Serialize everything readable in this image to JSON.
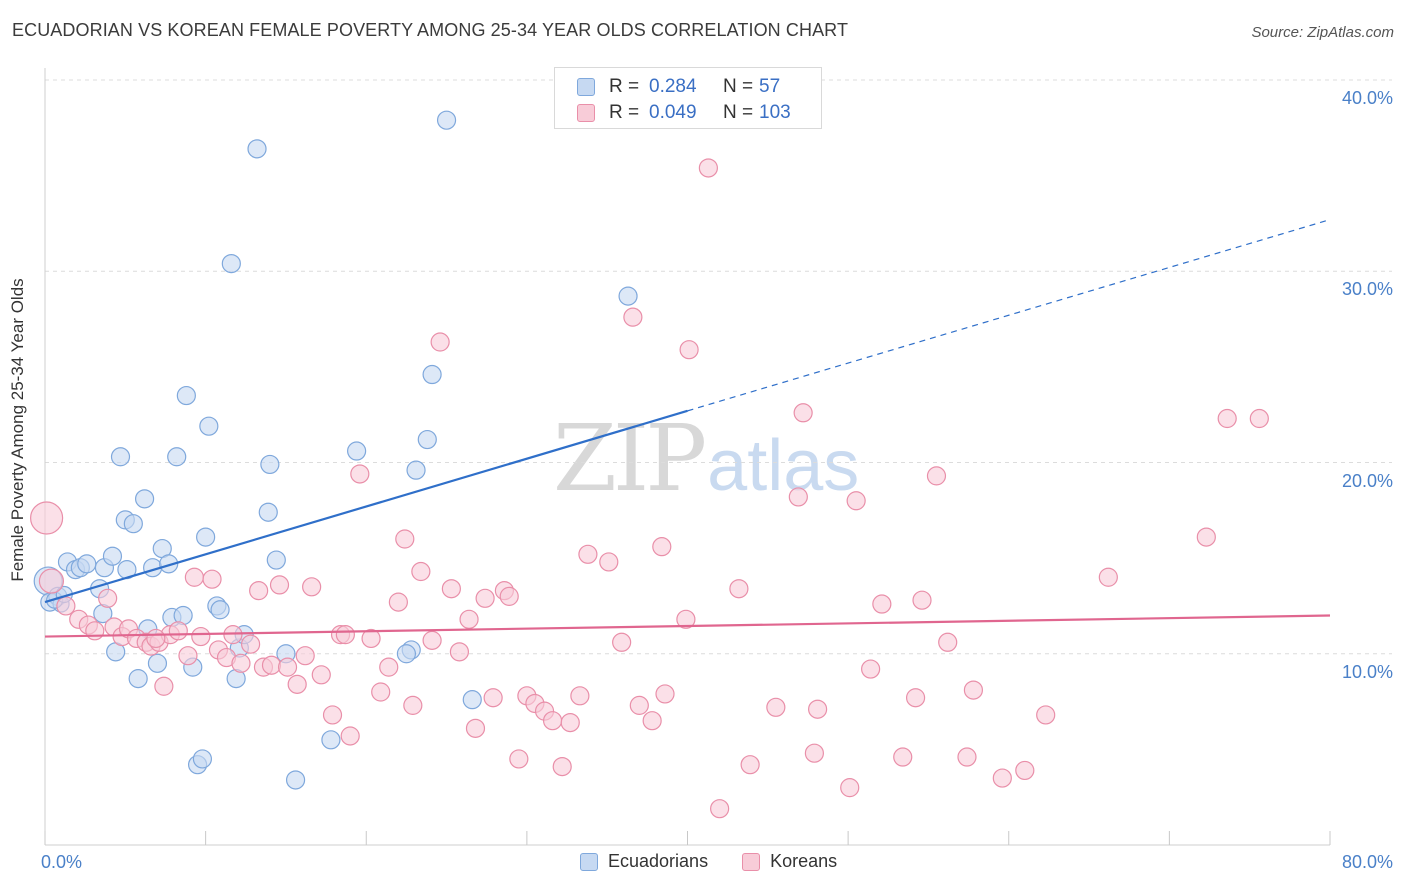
{
  "header": {
    "title": "ECUADORIAN VS KOREAN FEMALE POVERTY AMONG 25-34 YEAR OLDS CORRELATION CHART",
    "source": "Source: ZipAtlas.com"
  },
  "watermark": {
    "part1": "ZIP",
    "part2": "atlas"
  },
  "legend_box": {
    "rows": [
      {
        "r_label": "R =",
        "r_value": "0.284",
        "n_label": "N =",
        "n_value": "57"
      },
      {
        "r_label": "R =",
        "r_value": "0.049",
        "n_label": "N =",
        "n_value": "103"
      }
    ]
  },
  "legend_bottom": {
    "items": [
      "Ecuadorians",
      "Koreans"
    ]
  },
  "colors": {
    "blue_fill": "#c6d9f2",
    "blue_stroke": "#7fa8dc",
    "blue_line": "#2f6fc9",
    "pink_fill": "#f8ccd8",
    "pink_stroke": "#e98fa9",
    "pink_line": "#e0668f",
    "grid": "#dcdcdc",
    "tick_text": "#4a80c8"
  },
  "chart_data": {
    "type": "scatter",
    "title": "ECUADORIAN VS KOREAN FEMALE POVERTY AMONG 25-34 YEAR OLDS CORRELATION CHART",
    "xlabel": "",
    "ylabel": "Female Poverty Among 25-34 Year Olds",
    "xlim": [
      0,
      80
    ],
    "ylim": [
      0,
      40
    ],
    "x_tick_labels": [
      {
        "value": 0,
        "label": "0.0%"
      },
      {
        "value": 80,
        "label": "80.0%"
      }
    ],
    "y_tick_labels": [
      {
        "value": 10,
        "label": "10.0%"
      },
      {
        "value": 20,
        "label": "20.0%"
      },
      {
        "value": 30,
        "label": "30.0%"
      },
      {
        "value": 40,
        "label": "40.0%"
      }
    ],
    "grid": true,
    "legend": "bottom-center",
    "series": [
      {
        "name": "Ecuadorians",
        "color": "#7fa8dc",
        "trend": {
          "x": [
            0,
            40
          ],
          "y": [
            12.7,
            22.7
          ],
          "dashed_to": [
            80,
            32.7
          ]
        },
        "points": [
          [
            0.2,
            13.8,
            14
          ],
          [
            0.3,
            12.7,
            9
          ],
          [
            0.8,
            13.0,
            9
          ],
          [
            1.0,
            12.6,
            8
          ],
          [
            1.4,
            14.8,
            9
          ],
          [
            1.9,
            14.4,
            9
          ],
          [
            2.2,
            14.5,
            9
          ],
          [
            2.6,
            14.7,
            9
          ],
          [
            3.4,
            13.4,
            9
          ],
          [
            3.6,
            12.1,
            9
          ],
          [
            3.7,
            14.5,
            9
          ],
          [
            4.2,
            15.1,
            9
          ],
          [
            4.4,
            10.1,
            9
          ],
          [
            4.7,
            20.3,
            9
          ],
          [
            5.0,
            17.0,
            9
          ],
          [
            5.1,
            14.4,
            9
          ],
          [
            5.5,
            16.8,
            9
          ],
          [
            5.8,
            8.7,
            9
          ],
          [
            6.2,
            18.1,
            9
          ],
          [
            6.4,
            11.3,
            9
          ],
          [
            6.7,
            14.5,
            9
          ],
          [
            7.0,
            9.5,
            9
          ],
          [
            7.3,
            15.5,
            9
          ],
          [
            7.7,
            14.7,
            9
          ],
          [
            7.9,
            11.9,
            9
          ],
          [
            8.2,
            20.3,
            9
          ],
          [
            8.6,
            12.0,
            9
          ],
          [
            8.8,
            23.5,
            9
          ],
          [
            9.2,
            9.3,
            9
          ],
          [
            9.5,
            4.2,
            9
          ],
          [
            9.8,
            4.5,
            9
          ],
          [
            10.0,
            16.1,
            9
          ],
          [
            10.2,
            21.9,
            9
          ],
          [
            10.7,
            12.5,
            9
          ],
          [
            10.9,
            12.3,
            9
          ],
          [
            11.6,
            30.4,
            9
          ],
          [
            11.9,
            8.7,
            9
          ],
          [
            12.1,
            10.3,
            9
          ],
          [
            12.4,
            11.0,
            9
          ],
          [
            13.2,
            36.4,
            9
          ],
          [
            14.0,
            19.9,
            9
          ],
          [
            13.9,
            17.4,
            9
          ],
          [
            14.4,
            14.9,
            9
          ],
          [
            15.0,
            10.0,
            9
          ],
          [
            15.6,
            3.4,
            9
          ],
          [
            17.8,
            5.5,
            9
          ],
          [
            19.4,
            20.6,
            9
          ],
          [
            23.1,
            19.6,
            9
          ],
          [
            23.8,
            21.2,
            9
          ],
          [
            24.1,
            24.6,
            9
          ],
          [
            25.0,
            37.9,
            9
          ],
          [
            26.6,
            7.6,
            9
          ],
          [
            22.8,
            10.2,
            9
          ],
          [
            22.5,
            10.0,
            9
          ],
          [
            36.3,
            28.7,
            9
          ],
          [
            0.6,
            12.8,
            8
          ],
          [
            1.2,
            13.1,
            8
          ]
        ]
      },
      {
        "name": "Koreans",
        "color": "#e98fa9",
        "trend": {
          "x": [
            0,
            80
          ],
          "y": [
            10.9,
            12.0
          ]
        },
        "points": [
          [
            0.1,
            17.1,
            16
          ],
          [
            0.4,
            13.8,
            12
          ],
          [
            1.3,
            12.5,
            9
          ],
          [
            2.1,
            11.8,
            9
          ],
          [
            2.7,
            11.5,
            9
          ],
          [
            3.1,
            11.2,
            9
          ],
          [
            3.9,
            12.9,
            9
          ],
          [
            4.3,
            11.4,
            9
          ],
          [
            4.8,
            10.9,
            9
          ],
          [
            5.2,
            11.3,
            9
          ],
          [
            5.7,
            10.8,
            9
          ],
          [
            6.3,
            10.6,
            9
          ],
          [
            6.6,
            10.4,
            9
          ],
          [
            7.1,
            10.6,
            9
          ],
          [
            7.4,
            8.3,
            9
          ],
          [
            7.8,
            11.0,
            9
          ],
          [
            8.3,
            11.2,
            9
          ],
          [
            8.9,
            9.9,
            9
          ],
          [
            9.3,
            14.0,
            9
          ],
          [
            9.7,
            10.9,
            9
          ],
          [
            10.4,
            13.9,
            9
          ],
          [
            10.8,
            10.2,
            9
          ],
          [
            11.3,
            9.8,
            9
          ],
          [
            11.7,
            11.0,
            9
          ],
          [
            12.2,
            9.5,
            9
          ],
          [
            12.8,
            10.5,
            9
          ],
          [
            13.3,
            13.3,
            9
          ],
          [
            13.6,
            9.3,
            9
          ],
          [
            14.1,
            9.4,
            9
          ],
          [
            14.6,
            13.6,
            9
          ],
          [
            15.1,
            9.3,
            9
          ],
          [
            15.7,
            8.4,
            9
          ],
          [
            16.2,
            9.9,
            9
          ],
          [
            16.6,
            13.5,
            9
          ],
          [
            17.2,
            8.9,
            9
          ],
          [
            17.9,
            6.8,
            9
          ],
          [
            18.4,
            11.0,
            9
          ],
          [
            19.0,
            5.7,
            9
          ],
          [
            19.6,
            19.4,
            9
          ],
          [
            20.3,
            10.8,
            9
          ],
          [
            20.9,
            8.0,
            9
          ],
          [
            21.4,
            9.3,
            9
          ],
          [
            22.0,
            12.7,
            9
          ],
          [
            22.4,
            16.0,
            9
          ],
          [
            22.9,
            7.3,
            9
          ],
          [
            23.4,
            14.3,
            9
          ],
          [
            24.1,
            10.7,
            9
          ],
          [
            24.6,
            26.3,
            9
          ],
          [
            25.3,
            13.4,
            9
          ],
          [
            25.8,
            10.1,
            9
          ],
          [
            26.4,
            11.8,
            9
          ],
          [
            26.8,
            6.1,
            9
          ],
          [
            27.4,
            12.9,
            9
          ],
          [
            27.9,
            7.7,
            9
          ],
          [
            28.6,
            13.3,
            9
          ],
          [
            28.9,
            13.0,
            9
          ],
          [
            29.5,
            4.5,
            9
          ],
          [
            30.0,
            7.8,
            9
          ],
          [
            30.5,
            7.4,
            9
          ],
          [
            31.1,
            7.0,
            9
          ],
          [
            31.6,
            6.5,
            9
          ],
          [
            32.2,
            4.1,
            9
          ],
          [
            32.7,
            6.4,
            9
          ],
          [
            33.3,
            7.8,
            9
          ],
          [
            33.8,
            15.2,
            9
          ],
          [
            35.1,
            14.8,
            9
          ],
          [
            35.9,
            10.6,
            9
          ],
          [
            36.6,
            27.6,
            9
          ],
          [
            37.0,
            7.3,
            9
          ],
          [
            37.8,
            6.5,
            9
          ],
          [
            38.4,
            15.6,
            9
          ],
          [
            38.6,
            7.9,
            9
          ],
          [
            39.9,
            11.8,
            9
          ],
          [
            40.1,
            25.9,
            9
          ],
          [
            41.3,
            35.4,
            9
          ],
          [
            42.0,
            1.9,
            9
          ],
          [
            43.2,
            13.4,
            9
          ],
          [
            43.9,
            4.2,
            9
          ],
          [
            45.5,
            7.2,
            9
          ],
          [
            46.9,
            18.2,
            9
          ],
          [
            47.2,
            22.6,
            9
          ],
          [
            47.9,
            4.8,
            9
          ],
          [
            48.1,
            7.1,
            9
          ],
          [
            50.1,
            3.0,
            9
          ],
          [
            50.5,
            18.0,
            9
          ],
          [
            51.4,
            9.2,
            9
          ],
          [
            52.1,
            12.6,
            9
          ],
          [
            53.4,
            4.6,
            9
          ],
          [
            54.2,
            7.7,
            9
          ],
          [
            54.6,
            12.8,
            9
          ],
          [
            55.5,
            19.3,
            9
          ],
          [
            56.2,
            10.6,
            9
          ],
          [
            57.4,
            4.6,
            9
          ],
          [
            57.8,
            8.1,
            9
          ],
          [
            59.6,
            3.5,
            9
          ],
          [
            61.0,
            3.9,
            9
          ],
          [
            62.3,
            6.8,
            9
          ],
          [
            66.2,
            14.0,
            9
          ],
          [
            72.3,
            16.1,
            9
          ],
          [
            73.6,
            22.3,
            9
          ],
          [
            75.6,
            22.3,
            9
          ],
          [
            18.7,
            11.0,
            9
          ],
          [
            6.9,
            10.8,
            9
          ]
        ]
      }
    ]
  }
}
